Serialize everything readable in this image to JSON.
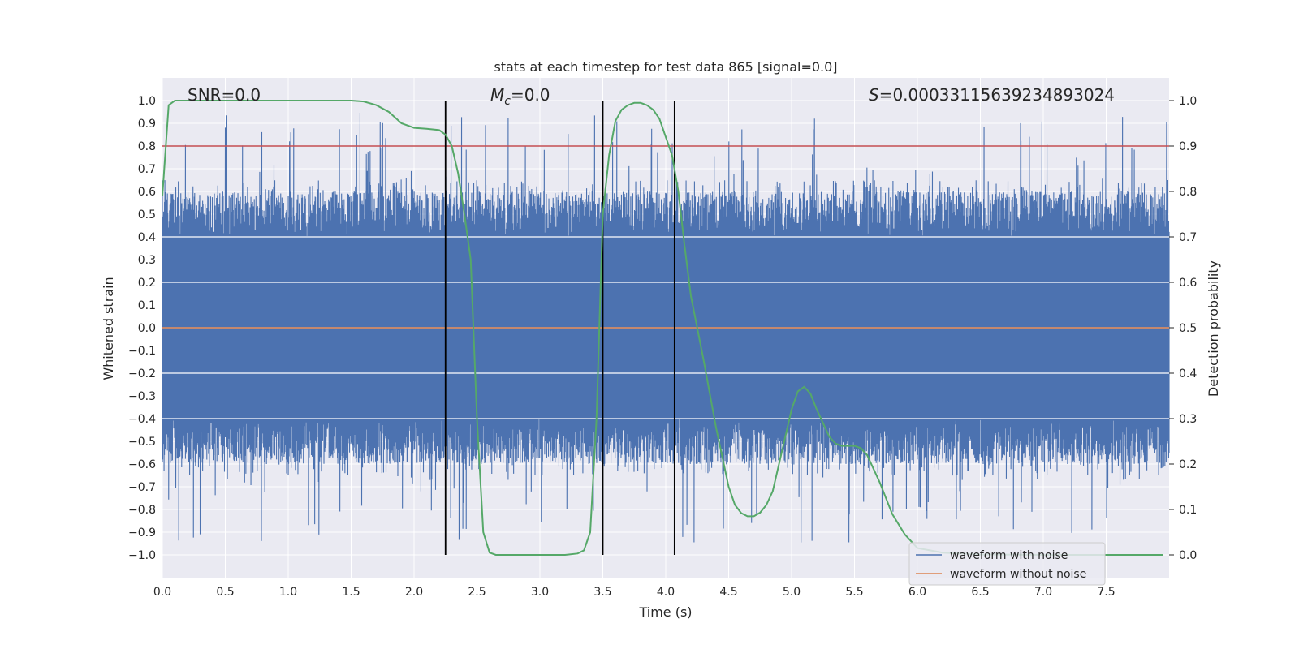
{
  "chart_data": {
    "type": "line",
    "title": "stats at each timestep for test data 865 [signal=0.0]",
    "xlabel": "Time (s)",
    "ylabel_left": "Whitened strain",
    "ylabel_right": "Detection probability",
    "xlim": [
      0.0,
      8.0
    ],
    "ylim_left": [
      -1.1,
      1.1
    ],
    "ylim_right": [
      -0.05,
      1.05
    ],
    "x_ticks": [
      "0.0",
      "0.5",
      "1.0",
      "1.5",
      "2.0",
      "2.5",
      "3.0",
      "3.5",
      "4.0",
      "4.5",
      "5.0",
      "5.5",
      "6.0",
      "6.5",
      "7.0",
      "7.5"
    ],
    "y_ticks_left": [
      "1.0",
      "0.9",
      "0.8",
      "0.7",
      "0.6",
      "0.5",
      "0.4",
      "0.3",
      "0.2",
      "0.1",
      "0.0",
      "-0.1",
      "-0.2",
      "-0.3",
      "-0.4",
      "-0.5",
      "-0.6",
      "-0.7",
      "-0.8",
      "-0.9",
      "-1.0"
    ],
    "y_ticks_right": [
      "1.0",
      "0.9",
      "0.8",
      "0.7",
      "0.6",
      "0.5",
      "0.4",
      "0.3",
      "0.2",
      "0.1",
      "0.0"
    ],
    "grid": true,
    "annotations": {
      "snr": "SNR=0.0",
      "mc_symbol": "M",
      "mc_sub": "c",
      "mc_value": "=0.0",
      "s_symbol": "S",
      "s_value": "=0.00033115639234893024"
    },
    "threshold": {
      "axis": "right",
      "value": 0.9,
      "color": "#c44e52"
    },
    "vertical_lines": [
      2.25,
      3.5,
      4.07
    ],
    "series": [
      {
        "name": "waveform with noise",
        "axis": "left",
        "color": "#4c72b0",
        "kind": "noise",
        "envelope": [
          -0.95,
          0.95
        ]
      },
      {
        "name": "waveform without noise",
        "axis": "left",
        "color": "#dd8452",
        "x": [
          0.0,
          8.0
        ],
        "y": [
          0.0,
          0.0
        ]
      },
      {
        "name": "detection probability",
        "axis": "right",
        "color": "#55a868",
        "x": [
          0.0,
          0.05,
          0.1,
          0.2,
          0.5,
          1.0,
          1.5,
          1.6,
          1.7,
          1.8,
          1.9,
          2.0,
          2.1,
          2.2,
          2.25,
          2.3,
          2.35,
          2.4,
          2.45,
          2.5,
          2.55,
          2.6,
          2.65,
          2.7,
          2.8,
          3.0,
          3.2,
          3.3,
          3.35,
          3.4,
          3.45,
          3.5,
          3.55,
          3.6,
          3.65,
          3.7,
          3.75,
          3.8,
          3.85,
          3.9,
          3.95,
          4.0,
          4.05,
          4.1,
          4.15,
          4.2,
          4.3,
          4.4,
          4.5,
          4.55,
          4.6,
          4.65,
          4.7,
          4.75,
          4.8,
          4.85,
          4.9,
          4.95,
          5.0,
          5.05,
          5.1,
          5.15,
          5.2,
          5.25,
          5.3,
          5.35,
          5.4,
          5.5,
          5.55,
          5.6,
          5.65,
          5.7,
          5.8,
          5.9,
          6.0,
          6.2,
          6.5,
          7.0,
          7.5,
          7.95
        ],
        "y": [
          0.79,
          0.99,
          1.0,
          1.0,
          1.0,
          1.0,
          1.0,
          0.998,
          0.99,
          0.975,
          0.95,
          0.94,
          0.938,
          0.935,
          0.925,
          0.9,
          0.84,
          0.75,
          0.65,
          0.3,
          0.05,
          0.005,
          0.0,
          0.0,
          0.0,
          0.0,
          0.0,
          0.003,
          0.01,
          0.05,
          0.3,
          0.75,
          0.88,
          0.955,
          0.98,
          0.99,
          0.995,
          0.995,
          0.99,
          0.98,
          0.96,
          0.92,
          0.88,
          0.8,
          0.68,
          0.57,
          0.43,
          0.28,
          0.15,
          0.11,
          0.092,
          0.085,
          0.085,
          0.093,
          0.11,
          0.14,
          0.2,
          0.26,
          0.32,
          0.36,
          0.37,
          0.355,
          0.32,
          0.29,
          0.26,
          0.245,
          0.24,
          0.24,
          0.235,
          0.22,
          0.19,
          0.16,
          0.09,
          0.045,
          0.015,
          0.005,
          0.001,
          0.0,
          0.0,
          0.0
        ]
      }
    ],
    "legend": {
      "location": "lower-right",
      "entries": [
        "waveform with noise",
        "waveform without noise"
      ]
    }
  }
}
